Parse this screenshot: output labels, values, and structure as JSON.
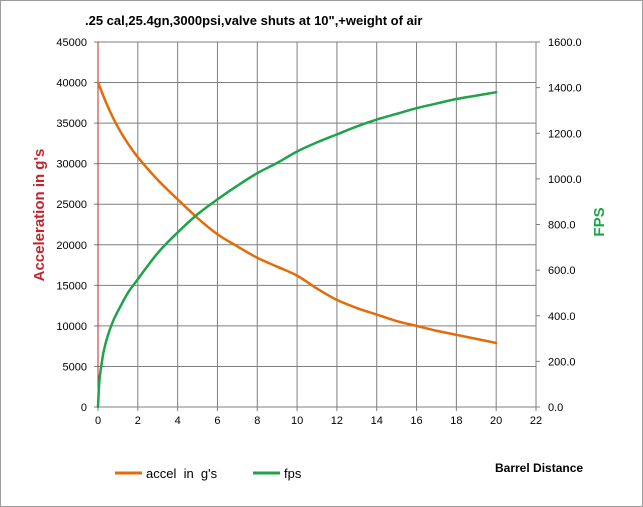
{
  "chart_data": {
    "type": "line",
    "title": ".25 cal,25.4gn,3000psi,valve shuts at 10\",+weight of air",
    "xlabel": "Barrel Distance",
    "ylabel_left": "Acceleration in g's",
    "ylabel_right": "FPS",
    "xlim": [
      0,
      22
    ],
    "ylim_left": [
      0,
      45000
    ],
    "ylim_right": [
      0,
      1600
    ],
    "x_ticks": [
      "0",
      "2",
      "4",
      "6",
      "8",
      "10",
      "12",
      "14",
      "16",
      "18",
      "20",
      "22"
    ],
    "y_left_ticks": [
      "0",
      "5000",
      "10000",
      "15000",
      "20000",
      "25000",
      "30000",
      "35000",
      "40000",
      "45000"
    ],
    "y_right_ticks": [
      "0.0",
      "200.0",
      "400.0",
      "600.0",
      "800.0",
      "1000.0",
      "1200.0",
      "1400.0",
      "1600.0"
    ],
    "grid": true,
    "legend_position": "bottom-left",
    "colors": {
      "accel": "#e36c0a",
      "fps": "#1ea34a",
      "left_axis_label": "#c0262e",
      "right_axis_label": "#1ea34a",
      "grid": "#7f7f7f"
    },
    "series": [
      {
        "name": "accel  in  g's",
        "axis": "left",
        "x": [
          0,
          0.5,
          1,
          1.5,
          2,
          3,
          4,
          5,
          6,
          7,
          8,
          9,
          10,
          11,
          12,
          13,
          14,
          15,
          16,
          17,
          18,
          19,
          20
        ],
        "values": [
          40000,
          37000,
          34500,
          32500,
          30800,
          28000,
          25600,
          23300,
          21300,
          19800,
          18400,
          17300,
          16200,
          14600,
          13200,
          12200,
          11400,
          10600,
          10000,
          9400,
          8900,
          8400,
          7900
        ]
      },
      {
        "name": "fps",
        "axis": "right",
        "x": [
          0,
          0.05,
          0.1,
          0.2,
          0.3,
          0.5,
          0.75,
          1,
          1.5,
          2,
          3,
          4,
          5,
          6,
          7,
          8,
          9,
          10,
          11,
          12,
          13,
          14,
          15,
          16,
          17,
          18,
          19,
          20
        ],
        "values": [
          0,
          90,
          140,
          200,
          250,
          315,
          375,
          420,
          500,
          560,
          675,
          765,
          845,
          910,
          970,
          1025,
          1070,
          1120,
          1160,
          1195,
          1230,
          1260,
          1285,
          1310,
          1330,
          1350,
          1365,
          1380
        ]
      }
    ]
  }
}
